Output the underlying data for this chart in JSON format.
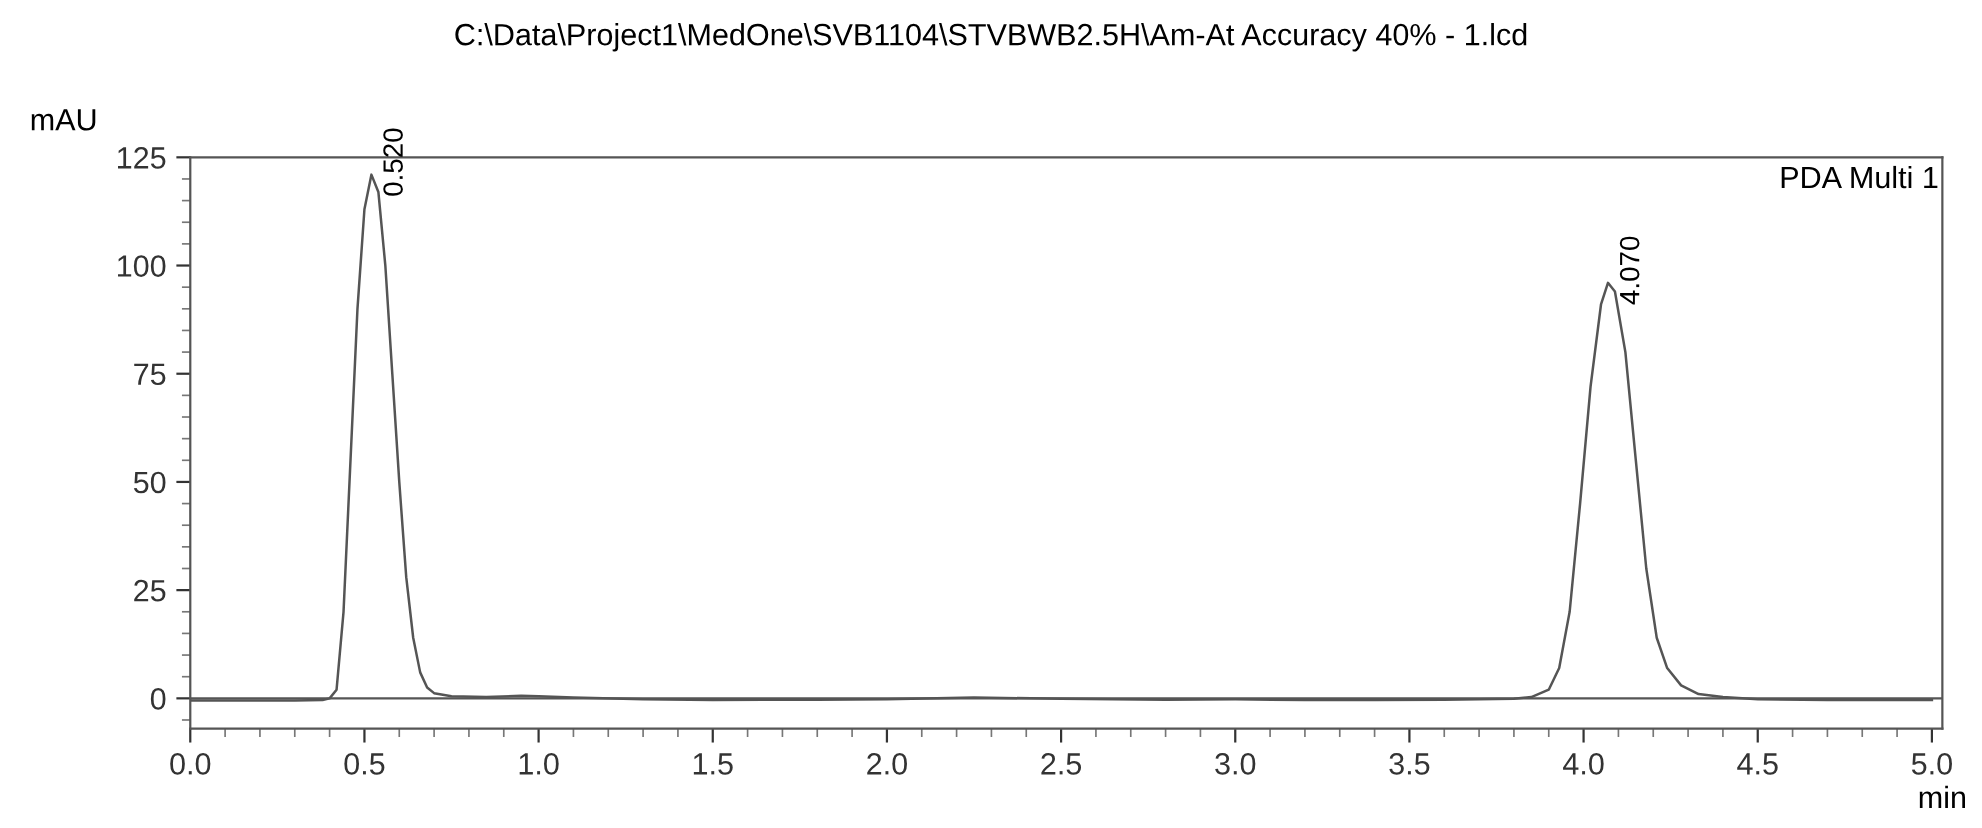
{
  "chart_data": {
    "type": "line",
    "title": "C:\\Data\\Project1\\MedOne\\SVB1104\\STVBWB2.5H\\Am-At Accuracy 40% - 1.lcd",
    "xlabel": "min",
    "ylabel": "mAU",
    "x": [
      0.0,
      0.1,
      0.2,
      0.3,
      0.38,
      0.4,
      0.42,
      0.44,
      0.46,
      0.48,
      0.5,
      0.52,
      0.54,
      0.56,
      0.58,
      0.6,
      0.62,
      0.64,
      0.66,
      0.68,
      0.7,
      0.75,
      0.85,
      0.95,
      1.0,
      1.1,
      1.3,
      1.5,
      1.8,
      2.0,
      2.25,
      2.5,
      2.8,
      3.0,
      3.2,
      3.4,
      3.6,
      3.8,
      3.85,
      3.9,
      3.93,
      3.96,
      3.99,
      4.02,
      4.05,
      4.07,
      4.09,
      4.12,
      4.15,
      4.18,
      4.21,
      4.24,
      4.28,
      4.33,
      4.4,
      4.5,
      4.7,
      4.9,
      5.0
    ],
    "series": [
      {
        "color": "#555555",
        "values": [
          -0.5,
          -0.5,
          -0.5,
          -0.5,
          -0.4,
          0,
          2,
          20,
          55,
          90,
          113,
          121,
          117,
          100,
          75,
          50,
          28,
          14,
          6,
          2.5,
          1.2,
          0.5,
          0.3,
          0.6,
          0.5,
          0.2,
          -0.2,
          -0.4,
          -0.3,
          -0.2,
          0.2,
          -0.1,
          -0.3,
          -0.2,
          -0.4,
          -0.4,
          -0.3,
          -0.1,
          0.3,
          2,
          7,
          20,
          45,
          72,
          91,
          96,
          94,
          80,
          55,
          30,
          14,
          7,
          3,
          1,
          0.3,
          -0.2,
          -0.4,
          -0.4,
          -0.4
        ]
      }
    ],
    "xlim": [
      0,
      5.03
    ],
    "ylim": [
      -7,
      125
    ],
    "xticks": [
      {
        "value": 0,
        "label": "0.0"
      },
      0.5,
      {
        "value": 1,
        "label": "1.0"
      },
      1.5,
      {
        "value": 2,
        "label": "2.0"
      },
      2.5,
      {
        "value": 3,
        "label": "3.0"
      },
      3.5,
      {
        "value": 4,
        "label": "4.0"
      },
      4.5,
      {
        "value": 5,
        "label": "5.0"
      }
    ],
    "yticks": [
      0,
      25,
      50,
      75,
      100,
      125
    ],
    "ref_lines": [
      {
        "axis": "y",
        "value": 0,
        "color": "#555555"
      }
    ],
    "annotations": [
      {
        "text": "0.520",
        "x": 0.52,
        "y": 121
      },
      {
        "text": "4.070",
        "x": 4.07,
        "y": 96
      },
      "PDA Multi 1"
    ],
    "grid": false,
    "legend": false,
    "marker": "none",
    "line_style": "solid"
  }
}
